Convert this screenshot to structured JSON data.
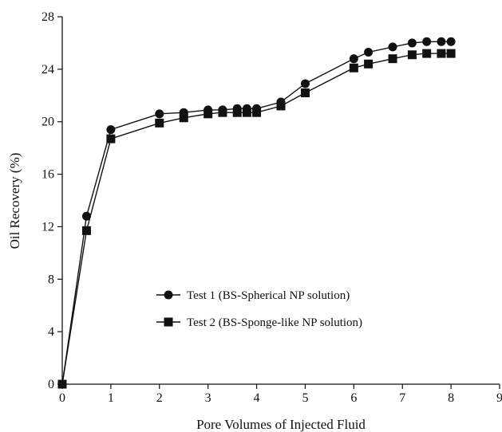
{
  "chart_data": {
    "type": "line",
    "title": "",
    "xlabel": "Pore Volumes of Injected Fluid",
    "ylabel": "Oil Recovery (%)",
    "xlim": [
      0,
      9
    ],
    "ylim": [
      0,
      28
    ],
    "xticks": [
      "0",
      "1",
      "2",
      "3",
      "4",
      "5",
      "6",
      "7",
      "8",
      "9"
    ],
    "yticks": [
      "0",
      "4",
      "8",
      "12",
      "16",
      "20",
      "24",
      "28"
    ],
    "grid": false,
    "legend_position": "center",
    "colors": {
      "line": "#111111",
      "marker": "#111111",
      "axis": "#111111"
    },
    "series": [
      {
        "name": "Test 1 (BS-Spherical NP solution)",
        "marker": "circle",
        "x": [
          0,
          0.5,
          1,
          2,
          2.5,
          3,
          3.3,
          3.6,
          3.8,
          4,
          4.5,
          5,
          6,
          6.3,
          6.8,
          7.2,
          7.5,
          7.8,
          8
        ],
        "y": [
          0,
          12.8,
          19.4,
          20.6,
          20.7,
          20.9,
          20.9,
          21.0,
          21.0,
          21.0,
          21.5,
          22.9,
          24.8,
          25.3,
          25.7,
          26.0,
          26.1,
          26.1,
          26.1
        ]
      },
      {
        "name": "Test 2 (BS-Sponge-like NP solution)",
        "marker": "square",
        "x": [
          0,
          0.5,
          1,
          2,
          2.5,
          3,
          3.3,
          3.6,
          3.8,
          4,
          4.5,
          5,
          6,
          6.3,
          6.8,
          7.2,
          7.5,
          7.8,
          8
        ],
        "y": [
          0,
          11.7,
          18.7,
          19.9,
          20.3,
          20.6,
          20.7,
          20.7,
          20.7,
          20.7,
          21.2,
          22.2,
          24.1,
          24.4,
          24.8,
          25.1,
          25.2,
          25.2,
          25.2
        ]
      }
    ]
  }
}
